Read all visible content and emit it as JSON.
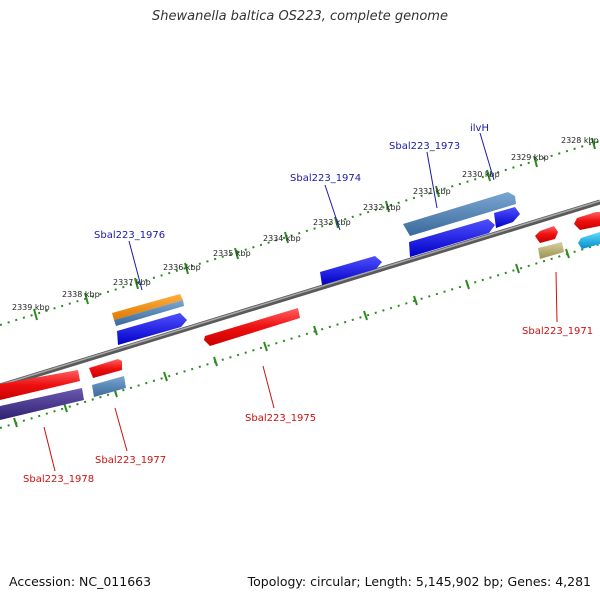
{
  "title": "Shewanella baltica OS223, complete genome",
  "footer": {
    "accession": "Accession: NC_011663",
    "topology": "Topology: circular; Length: 5,145,902 bp; Genes: 4,281"
  },
  "kbp_ticks": [
    "2328 kbp",
    "2329 kbp",
    "2330 kbp",
    "2331 kbp",
    "2332 kbp",
    "2333 kbp",
    "2334 kbp",
    "2335 kbp",
    "2336 kbp",
    "2337 kbp",
    "2338 kbp",
    "2339 kbp"
  ],
  "gene_labels": {
    "ilvH": "ilvH",
    "sbal1973": "Sbal223_1973",
    "sbal1974": "Sbal223_1974",
    "sbal1976": "Sbal223_1976",
    "sbal1971": "Sbal223_1971",
    "sbal1975": "Sbal223_1975",
    "sbal1977": "Sbal223_1977",
    "sbal1978": "Sbal223_1978"
  },
  "colors": {
    "backbone": "#808080",
    "tick_green": "#2e8b22",
    "gene_blue": "#1010dd",
    "gene_steel": "#4a7fb0",
    "gene_orange": "#f08c10",
    "gene_red": "#ee1010",
    "gene_purple": "#4a3a90",
    "gene_khaki": "#b8b070",
    "gene_cyan": "#10b0e8",
    "label_blue": "#1a1aa8",
    "label_red": "#cc1111"
  }
}
